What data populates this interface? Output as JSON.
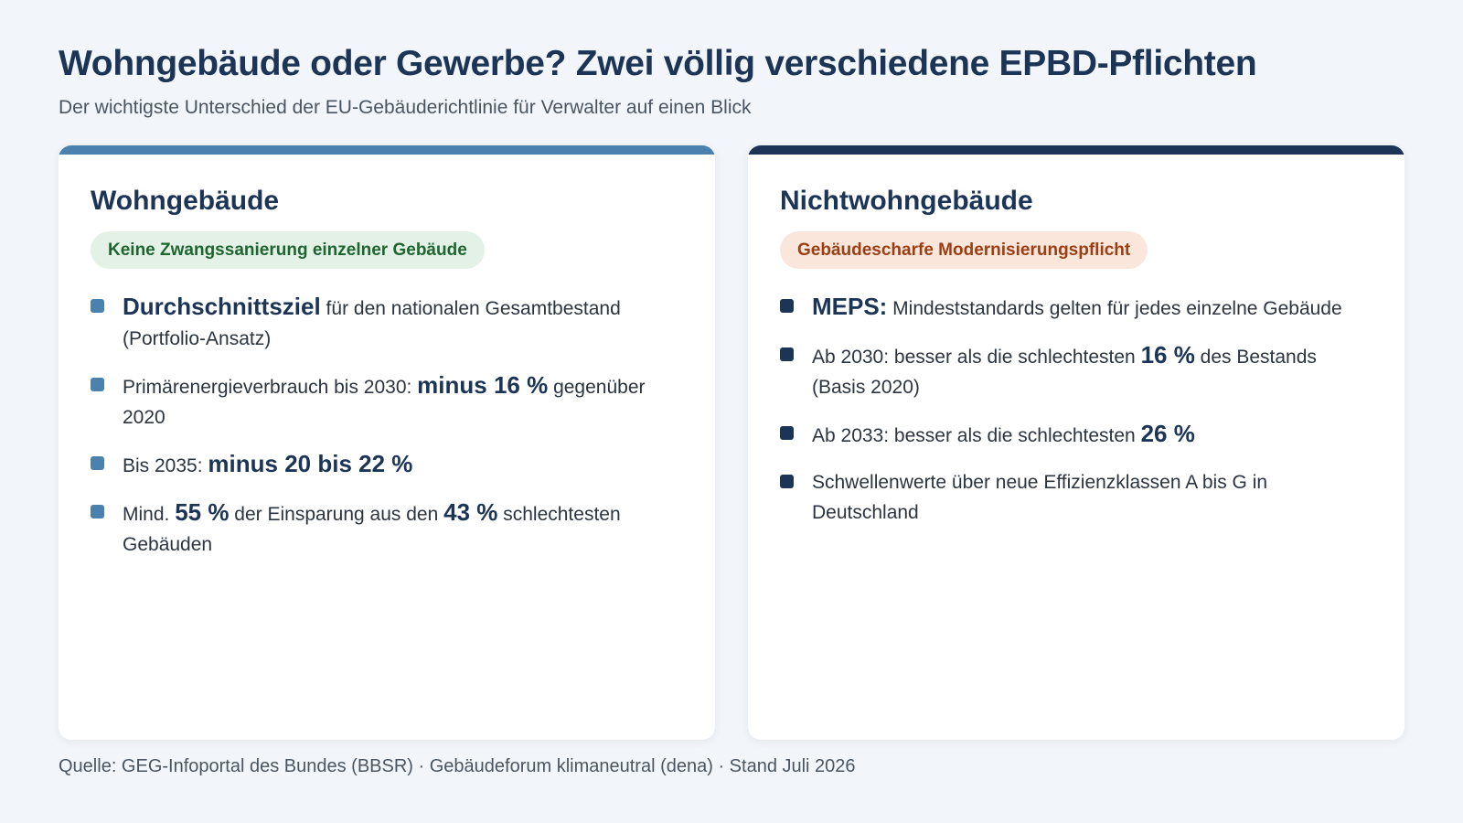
{
  "header": {
    "title": "Wohngebäude oder Gewerbe? Zwei völlig verschiedene EPBD-Pflichten",
    "subtitle": "Der wichtigste Unterschied der EU-Gebäuderichtlinie für Verwalter auf einen Blick"
  },
  "cards": [
    {
      "title": "Wohngebäude",
      "accent": "#4a82ad",
      "badge": {
        "text": "Keine Zwangssanierung einzelner Gebäude",
        "bg": "#e3f1e6",
        "color": "#1f6530"
      },
      "items": [
        {
          "parts": [
            {
              "t": "Durchschnittsziel",
              "em": true
            },
            {
              "t": " für den nationalen Gesamtbestand (Portfolio-Ansatz)"
            }
          ]
        },
        {
          "parts": [
            {
              "t": "Primärenergieverbrauch bis 2030: "
            },
            {
              "t": "minus 16 %",
              "em": true
            },
            {
              "t": " gegenüber 2020"
            }
          ]
        },
        {
          "parts": [
            {
              "t": "Bis 2035: "
            },
            {
              "t": "minus 20 bis 22 %",
              "em": true
            }
          ]
        },
        {
          "parts": [
            {
              "t": "Mind. "
            },
            {
              "t": "55 %",
              "em": true
            },
            {
              "t": " der Einsparung aus den "
            },
            {
              "t": "43 %",
              "em": true
            },
            {
              "t": " schlechtesten Gebäuden"
            }
          ]
        }
      ]
    },
    {
      "title": "Nichtwohngebäude",
      "accent": "#1c3557",
      "badge": {
        "text": "Gebäudescharfe Modernisierungspflicht",
        "bg": "#fbe6dc",
        "color": "#9a3f13"
      },
      "items": [
        {
          "parts": [
            {
              "t": "MEPS:",
              "em": true
            },
            {
              "t": " Mindeststandards gelten für jedes einzelne Gebäude"
            }
          ]
        },
        {
          "parts": [
            {
              "t": "Ab 2030: besser als die schlechtesten "
            },
            {
              "t": "16 %",
              "em": true
            },
            {
              "t": " des Bestands (Basis 2020)"
            }
          ]
        },
        {
          "parts": [
            {
              "t": "Ab 2033: besser als die schlechtesten "
            },
            {
              "t": "26 %",
              "em": true
            }
          ]
        },
        {
          "parts": [
            {
              "t": "Schwellenwerte über neue Effizienzklassen A bis G in Deutschland"
            }
          ]
        }
      ]
    }
  ],
  "footer": {
    "source": "Quelle: GEG-Infoportal des Bundes (BBSR) · Gebäudeforum klimaneutral (dena) · Stand Juli 2026"
  }
}
